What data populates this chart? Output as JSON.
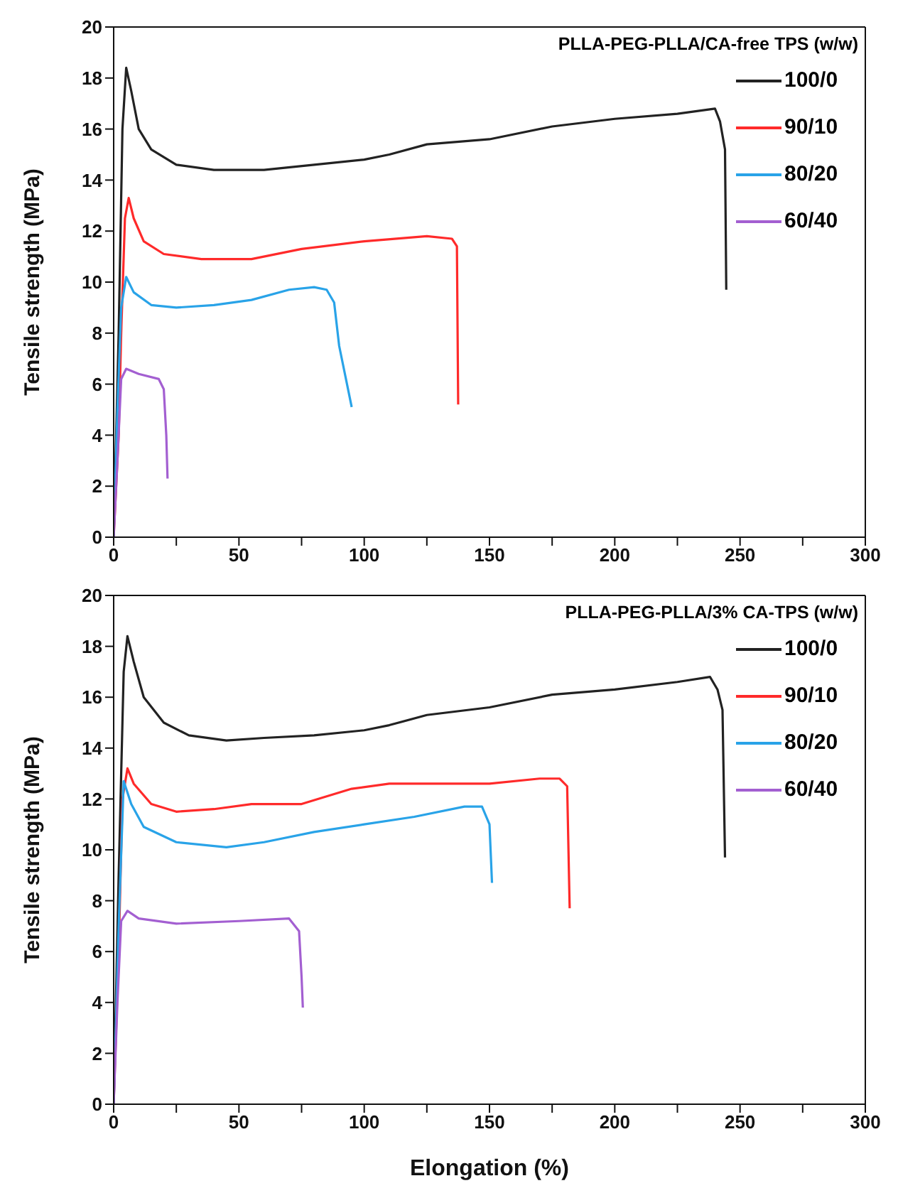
{
  "chart_data": [
    {
      "type": "line",
      "legend_title": "PLLA-PEG-PLLA/CA-free TPS (w/w)",
      "ylabel": "Tensile strength (MPa)",
      "xlim": [
        0,
        300
      ],
      "xticks": [
        0,
        {
          "value": 25,
          "label": null
        },
        50,
        {
          "value": 75,
          "label": null
        },
        100,
        {
          "value": 125,
          "label": null
        },
        150,
        {
          "value": 175,
          "label": null
        },
        200,
        {
          "value": 225,
          "label": null
        },
        250,
        {
          "value": 275,
          "label": null
        },
        300
      ],
      "ylim": [
        0,
        20
      ],
      "yticks": [
        0,
        2,
        4,
        6,
        8,
        10,
        12,
        14,
        16,
        18,
        20
      ],
      "legend": "top right",
      "marker": "none",
      "line_style": "solid",
      "series": [
        {
          "name": "100/0",
          "color": "#222222",
          "x": [
            0,
            2,
            3.5,
            5,
            7,
            10,
            15,
            25,
            40,
            60,
            80,
            100,
            110,
            125,
            150,
            175,
            200,
            225,
            240,
            242,
            244,
            244.5
          ],
          "values": [
            0,
            8,
            16,
            18.4,
            17.5,
            16,
            15.2,
            14.6,
            14.4,
            14.4,
            14.6,
            14.8,
            15,
            15.4,
            15.6,
            16.1,
            16.4,
            16.6,
            16.8,
            16.3,
            15.2,
            9.7
          ]
        },
        {
          "name": "90/10",
          "color": "#ff2a2a",
          "x": [
            0,
            2,
            3,
            4.5,
            6,
            8,
            12,
            20,
            35,
            55,
            75,
            100,
            125,
            135,
            137,
            137.5
          ],
          "values": [
            0,
            4,
            8,
            12.5,
            13.3,
            12.5,
            11.6,
            11.1,
            10.9,
            10.9,
            11.3,
            11.6,
            11.8,
            11.7,
            11.4,
            5.2
          ]
        },
        {
          "name": "80/20",
          "color": "#29a3e8",
          "x": [
            0,
            1.5,
            3,
            5,
            8,
            15,
            25,
            40,
            55,
            70,
            80,
            85,
            88,
            90,
            95
          ],
          "values": [
            0,
            5,
            9,
            10.2,
            9.6,
            9.1,
            9,
            9.1,
            9.3,
            9.7,
            9.8,
            9.7,
            9.2,
            7.5,
            5.1
          ]
        },
        {
          "name": "60/40",
          "color": "#a35fd1",
          "x": [
            0,
            1.5,
            3,
            5,
            10,
            18,
            20,
            21,
            21.5
          ],
          "values": [
            0,
            3,
            6.2,
            6.6,
            6.4,
            6.2,
            5.8,
            4,
            2.3
          ]
        }
      ]
    },
    {
      "type": "line",
      "legend_title": "PLLA-PEG-PLLA/3% CA-TPS (w/w)",
      "xlabel": "Elongation (%)",
      "ylabel": "Tensile strength (MPa)",
      "xlim": [
        0,
        300
      ],
      "xticks": [
        0,
        {
          "value": 25,
          "label": null
        },
        50,
        {
          "value": 75,
          "label": null
        },
        100,
        {
          "value": 125,
          "label": null
        },
        150,
        {
          "value": 175,
          "label": null
        },
        200,
        {
          "value": 225,
          "label": null
        },
        250,
        {
          "value": 275,
          "label": null
        },
        300
      ],
      "ylim": [
        0,
        20
      ],
      "yticks": [
        0,
        2,
        4,
        6,
        8,
        10,
        12,
        14,
        16,
        18,
        20
      ],
      "legend": "top right",
      "marker": "none",
      "line_style": "solid",
      "series": [
        {
          "name": "100/0",
          "color": "#222222",
          "x": [
            0,
            2,
            4,
            5.5,
            8,
            12,
            20,
            30,
            45,
            60,
            80,
            100,
            110,
            125,
            150,
            175,
            200,
            225,
            238,
            241,
            243,
            244
          ],
          "values": [
            0,
            9,
            17,
            18.4,
            17.4,
            16,
            15,
            14.5,
            14.3,
            14.4,
            14.5,
            14.7,
            14.9,
            15.3,
            15.6,
            16.1,
            16.3,
            16.6,
            16.8,
            16.3,
            15.5,
            9.7
          ]
        },
        {
          "name": "90/10",
          "color": "#ff2a2a",
          "x": [
            0,
            2,
            3.5,
            5.5,
            8,
            15,
            25,
            40,
            55,
            75,
            95,
            110,
            150,
            170,
            178,
            181,
            182
          ],
          "values": [
            0,
            6,
            12,
            13.2,
            12.6,
            11.8,
            11.5,
            11.6,
            11.8,
            11.8,
            12.4,
            12.6,
            12.6,
            12.8,
            12.8,
            12.5,
            7.7
          ]
        },
        {
          "name": "80/20",
          "color": "#29a3e8",
          "x": [
            0,
            2,
            4,
            7,
            12,
            25,
            45,
            60,
            80,
            100,
            120,
            140,
            147,
            150,
            151
          ],
          "values": [
            0,
            7,
            12.7,
            11.8,
            10.9,
            10.3,
            10.1,
            10.3,
            10.7,
            11,
            11.3,
            11.7,
            11.7,
            11,
            8.7
          ]
        },
        {
          "name": "60/40",
          "color": "#a35fd1",
          "x": [
            0,
            1.5,
            3,
            5.5,
            10,
            25,
            50,
            70,
            74,
            75,
            75.5
          ],
          "values": [
            0,
            4,
            7.2,
            7.6,
            7.3,
            7.1,
            7.2,
            7.3,
            6.8,
            5,
            3.8
          ]
        }
      ]
    }
  ]
}
